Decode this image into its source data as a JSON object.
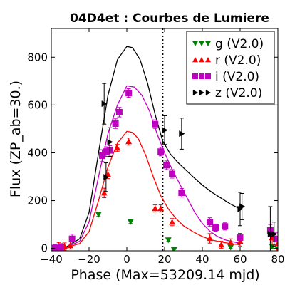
{
  "chart_data": {
    "type": "scatter",
    "title": "04D4et : Courbes de Lumiere",
    "xlabel": "Phase (Max=53209.14 mjd)",
    "ylabel": "Flux (ZP_ab=30.)",
    "xlim": [
      -40,
      80
    ],
    "ylim": [
      -10,
      920
    ],
    "xticks": [
      -40,
      -20,
      0,
      20,
      40,
      60,
      80
    ],
    "yticks": [
      0,
      200,
      400,
      600,
      800
    ],
    "vline_x": 19,
    "legend_position": "top-right",
    "series": [
      {
        "name": "g (V2.0)",
        "color": "#008000",
        "marker": "triangle-down",
        "points": [
          [
            -15,
            142
          ],
          [
            2,
            112
          ],
          [
            22,
            35
          ],
          [
            25,
            -5
          ],
          [
            55,
            5
          ],
          [
            77,
            8
          ],
          [
            80,
            -3
          ]
        ],
        "errors": [
          8,
          8,
          6,
          6,
          6,
          8,
          8
        ],
        "curve": []
      },
      {
        "name": "r (V2.0)",
        "color": "#ff0000",
        "marker": "triangle-up",
        "points": [
          [
            -36,
            5
          ],
          [
            -33,
            8
          ],
          [
            -30,
            12
          ],
          [
            -12,
            232
          ],
          [
            -10,
            310
          ],
          [
            -5,
            420
          ],
          [
            1,
            447
          ],
          [
            15,
            167
          ],
          [
            18,
            167
          ],
          [
            24,
            110
          ],
          [
            44,
            42
          ],
          [
            50,
            15
          ],
          [
            55,
            25
          ],
          [
            60,
            30
          ],
          [
            77,
            45
          ],
          [
            80,
            20
          ]
        ],
        "errors": [
          20,
          15,
          15,
          20,
          18,
          15,
          15,
          15,
          15,
          15,
          20,
          15,
          15,
          20,
          30,
          25
        ],
        "curve": [
          [
            -33,
            2
          ],
          [
            -25,
            20
          ],
          [
            -20,
            70
          ],
          [
            -15,
            200
          ],
          [
            -10,
            340
          ],
          [
            -5,
            440
          ],
          [
            0,
            490
          ],
          [
            3,
            485
          ],
          [
            6,
            460
          ],
          [
            10,
            390
          ],
          [
            14,
            300
          ],
          [
            18,
            220
          ],
          [
            22,
            165
          ],
          [
            26,
            125
          ],
          [
            30,
            95
          ],
          [
            35,
            70
          ],
          [
            40,
            50
          ],
          [
            45,
            35
          ],
          [
            50,
            27
          ],
          [
            55,
            20
          ],
          [
            60,
            15
          ]
        ]
      },
      {
        "name": "i (V2.0)",
        "color": "#c000c0",
        "marker": "square",
        "points": [
          [
            -38,
            2
          ],
          [
            -35,
            5
          ],
          [
            -29,
            40
          ],
          [
            -13,
            388
          ],
          [
            -11,
            405
          ],
          [
            -9,
            410
          ],
          [
            -6,
            522
          ],
          [
            -4,
            570
          ],
          [
            1,
            650
          ],
          [
            15,
            520
          ],
          [
            18,
            405
          ],
          [
            21,
            348
          ],
          [
            24,
            312
          ],
          [
            29,
            233
          ],
          [
            44,
            110
          ],
          [
            47,
            87
          ],
          [
            52,
            92
          ],
          [
            60,
            45
          ],
          [
            76,
            75
          ],
          [
            79,
            40
          ]
        ],
        "errors": [
          15,
          15,
          20,
          25,
          20,
          20,
          20,
          20,
          18,
          18,
          18,
          18,
          18,
          18,
          18,
          15,
          15,
          18,
          25,
          25
        ],
        "curve": [
          [
            -33,
            2
          ],
          [
            -25,
            30
          ],
          [
            -20,
            110
          ],
          [
            -15,
            300
          ],
          [
            -10,
            480
          ],
          [
            -5,
            600
          ],
          [
            0,
            680
          ],
          [
            4,
            675
          ],
          [
            8,
            640
          ],
          [
            12,
            575
          ],
          [
            16,
            480
          ],
          [
            20,
            400
          ],
          [
            24,
            330
          ],
          [
            28,
            270
          ],
          [
            32,
            210
          ],
          [
            36,
            150
          ],
          [
            40,
            105
          ],
          [
            44,
            72
          ],
          [
            48,
            50
          ],
          [
            52,
            36
          ],
          [
            56,
            28
          ],
          [
            60,
            22
          ]
        ]
      },
      {
        "name": "z (V2.0)",
        "color": "#000000",
        "marker": "triangle-right",
        "points": [
          [
            -12,
            605
          ],
          [
            -11,
            298
          ],
          [
            -9,
            445
          ],
          [
            20,
            495
          ],
          [
            29,
            480
          ],
          [
            60,
            165
          ],
          [
            61,
            175
          ],
          [
            76,
            60
          ],
          [
            78,
            60
          ]
        ],
        "errors": [
          85,
          60,
          60,
          60,
          65,
          70,
          55,
          115,
          50
        ],
        "curve": [
          [
            -33,
            2
          ],
          [
            -25,
            40
          ],
          [
            -20,
            150
          ],
          [
            -15,
            400
          ],
          [
            -10,
            640
          ],
          [
            -5,
            790
          ],
          [
            0,
            845
          ],
          [
            3,
            840
          ],
          [
            7,
            790
          ],
          [
            11,
            690
          ],
          [
            15,
            560
          ],
          [
            19,
            450
          ],
          [
            23,
            395
          ],
          [
            27,
            360
          ],
          [
            31,
            330
          ],
          [
            35,
            300
          ],
          [
            40,
            265
          ],
          [
            45,
            235
          ],
          [
            50,
            210
          ],
          [
            55,
            185
          ],
          [
            60,
            165
          ]
        ]
      }
    ]
  }
}
